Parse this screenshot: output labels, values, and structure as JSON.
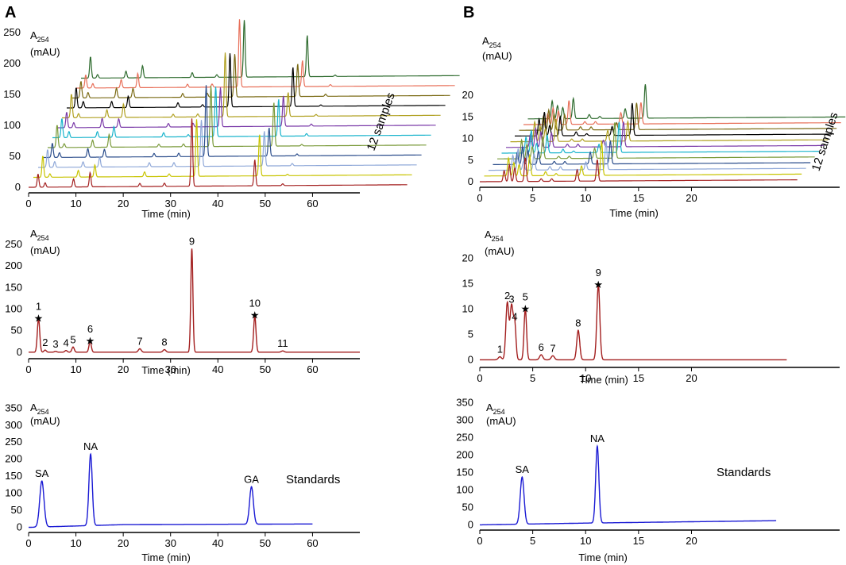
{
  "panels": [
    {
      "letter": "A",
      "x_max": 70,
      "x_ticks": [
        0,
        10,
        20,
        30,
        40,
        50,
        60
      ],
      "xlabel": "Time (min)",
      "ylabel_main": "A",
      "ylabel_sub": "254",
      "ylabel_unit": "(mAU)",
      "stack": {
        "label": "12 samples",
        "y_ticks": [
          0,
          50,
          100,
          150,
          200,
          250
        ],
        "trace_colors": [
          "#a31f1f",
          "#c8c400",
          "#8fa8d8",
          "#2c4e8c",
          "#7a9a3a",
          "#19b4cc",
          "#7a3aa8",
          "#b0a020",
          "#000000",
          "#7a6a14",
          "#e8705a",
          "#2e6b2e"
        ],
        "peaks": [
          [
            2,
            30
          ],
          [
            3.5,
            8
          ],
          [
            9.5,
            12
          ],
          [
            13,
            18
          ],
          [
            23.5,
            6
          ],
          [
            28.7,
            5
          ],
          [
            34.5,
            90
          ],
          [
            47.8,
            55
          ],
          [
            53.7,
            3
          ]
        ]
      },
      "chromatogram": {
        "color": "#a31f1f",
        "y_ticks": [
          0,
          50,
          100,
          150,
          200,
          250
        ],
        "ylim": [
          -15,
          270
        ],
        "peaks": [
          {
            "label": "1",
            "t": 2.1,
            "h": 78,
            "w": 0.25,
            "star": true
          },
          {
            "label": "2",
            "t": 3.5,
            "h": 5,
            "w": 0.25,
            "star": false
          },
          {
            "label": "3",
            "t": 5.7,
            "h": 2,
            "w": 0.25,
            "star": false
          },
          {
            "label": "4",
            "t": 7.9,
            "h": 4,
            "w": 0.25,
            "star": false
          },
          {
            "label": "5",
            "t": 9.4,
            "h": 12,
            "w": 0.25,
            "star": false
          },
          {
            "label": "6",
            "t": 13.0,
            "h": 25,
            "w": 0.25,
            "star": true
          },
          {
            "label": "7",
            "t": 23.5,
            "h": 8,
            "w": 0.3,
            "star": false
          },
          {
            "label": "8",
            "t": 28.7,
            "h": 6,
            "w": 0.3,
            "star": false
          },
          {
            "label": "9",
            "t": 34.5,
            "h": 240,
            "w": 0.22,
            "star": false
          },
          {
            "label": "10",
            "t": 47.8,
            "h": 85,
            "w": 0.25,
            "star": true
          },
          {
            "label": "11",
            "t": 53.7,
            "h": 3,
            "w": 0.3,
            "star": false
          }
        ]
      },
      "standards": {
        "color": "#1a1ad4",
        "label": "Standards",
        "y_ticks": [
          0,
          50,
          100,
          150,
          200,
          250,
          300,
          350
        ],
        "ylim": [
          -15,
          360
        ],
        "x_end": 60,
        "baseline": [
          {
            "t": 0,
            "v": 0
          },
          {
            "t": 20,
            "v": 8
          },
          {
            "t": 60,
            "v": 10
          }
        ],
        "peaks": [
          {
            "label": "SA",
            "t": 2.8,
            "h": 135,
            "w": 0.45
          },
          {
            "label": "NA",
            "t": 13.1,
            "h": 210,
            "w": 0.35
          },
          {
            "label": "GA",
            "t": 47.1,
            "h": 110,
            "w": 0.4
          }
        ]
      }
    },
    {
      "letter": "B",
      "x_max": 34,
      "x_ticks": [
        0,
        5,
        10,
        15,
        20
      ],
      "xlabel": "Time (min)",
      "ylabel_main": "A",
      "ylabel_sub": "254",
      "ylabel_unit": "(mAU)",
      "stack": {
        "label": "12 samples",
        "y_ticks": [
          0,
          5,
          10,
          15,
          20
        ],
        "trace_colors": [
          "#a31f1f",
          "#c8c400",
          "#8fa8d8",
          "#2c4e8c",
          "#7a9a3a",
          "#19b4cc",
          "#7a3aa8",
          "#b0a020",
          "#000000",
          "#7a6a14",
          "#e8705a",
          "#2e6b2e"
        ],
        "peaks": [
          [
            2.3,
            5
          ],
          [
            2.8,
            6
          ],
          [
            3.3,
            4
          ],
          [
            4.3,
            6
          ],
          [
            5.8,
            1
          ],
          [
            6.8,
            0.8
          ],
          [
            9.2,
            3
          ],
          [
            11.1,
            9
          ]
        ]
      },
      "chromatogram": {
        "color": "#a31f1f",
        "y_ticks": [
          0,
          5,
          10,
          15,
          20
        ],
        "ylim": [
          -1.5,
          24
        ],
        "peaks": [
          {
            "label": "1",
            "t": 1.9,
            "h": 0.6,
            "w": 0.15,
            "star": false
          },
          {
            "label": "2",
            "t": 2.6,
            "h": 11.2,
            "w": 0.14,
            "star": false
          },
          {
            "label": "3",
            "t": 3.0,
            "h": 10.5,
            "w": 0.14,
            "star": false
          },
          {
            "label": "4",
            "t": 3.3,
            "h": 7,
            "w": 0.12,
            "star": false
          },
          {
            "label": "5",
            "t": 4.3,
            "h": 10.0,
            "w": 0.12,
            "star": true
          },
          {
            "label": "6",
            "t": 5.8,
            "h": 1.0,
            "w": 0.15,
            "star": false
          },
          {
            "label": "7",
            "t": 6.9,
            "h": 0.8,
            "w": 0.15,
            "star": false
          },
          {
            "label": "8",
            "t": 9.3,
            "h": 5.8,
            "w": 0.14,
            "star": false
          },
          {
            "label": "9",
            "t": 11.2,
            "h": 14.8,
            "w": 0.14,
            "star": true
          }
        ]
      },
      "standards": {
        "color": "#1a1ad4",
        "label": "Standards",
        "y_ticks": [
          0,
          50,
          100,
          150,
          200,
          250,
          300,
          350
        ],
        "ylim": [
          -15,
          360
        ],
        "x_end": 28,
        "baseline": [
          {
            "t": 0,
            "v": 0
          },
          {
            "t": 10,
            "v": 5
          },
          {
            "t": 28,
            "v": 12
          }
        ],
        "peaks": [
          {
            "label": "SA",
            "t": 4.0,
            "h": 135,
            "w": 0.18
          },
          {
            "label": "NA",
            "t": 11.1,
            "h": 220,
            "w": 0.15
          }
        ]
      }
    }
  ]
}
